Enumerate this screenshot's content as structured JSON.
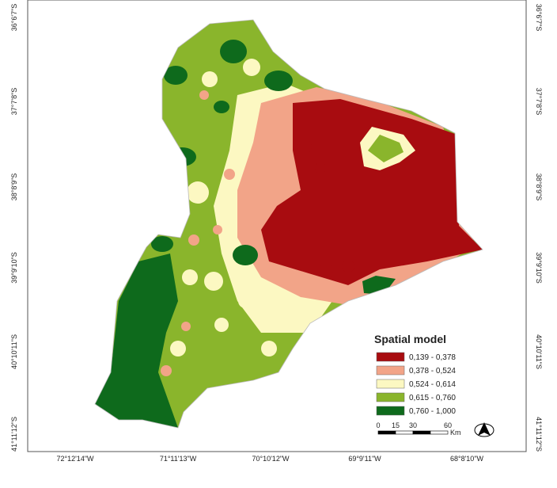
{
  "map": {
    "lat_labels_left": [
      "36°6'7\"S",
      "37°7'8\"S",
      "38°8'9\"S",
      "39°9'10\"S",
      "40°10'11\"S",
      "41°11'12\"S"
    ],
    "lat_labels_right": [
      "36°6'7\"S",
      "37°7'8\"S",
      "38°8'9\"S",
      "39°9'10\"S",
      "40°10'11\"S",
      "41°11'12\"S"
    ],
    "lon_labels": [
      "72°12'14\"W",
      "71°11'13\"W",
      "70°10'12\"W",
      "69°9'11\"W",
      "68°8'10\"W"
    ],
    "legend": {
      "title": "Spatial model",
      "entries": [
        {
          "label": "0,139 - 0,378",
          "color": "#a80c10"
        },
        {
          "label": "0,378 - 0,524",
          "color": "#f2a488"
        },
        {
          "label": "0,524 - 0,614",
          "color": "#fcf8c2"
        },
        {
          "label": "0,615 - 0,760",
          "color": "#8ab52c"
        },
        {
          "label": "0,760 - 1,000",
          "color": "#0e6a1c"
        }
      ]
    },
    "scale": {
      "labels": [
        "0",
        "15",
        "30",
        "60"
      ],
      "unit": "Km"
    }
  }
}
